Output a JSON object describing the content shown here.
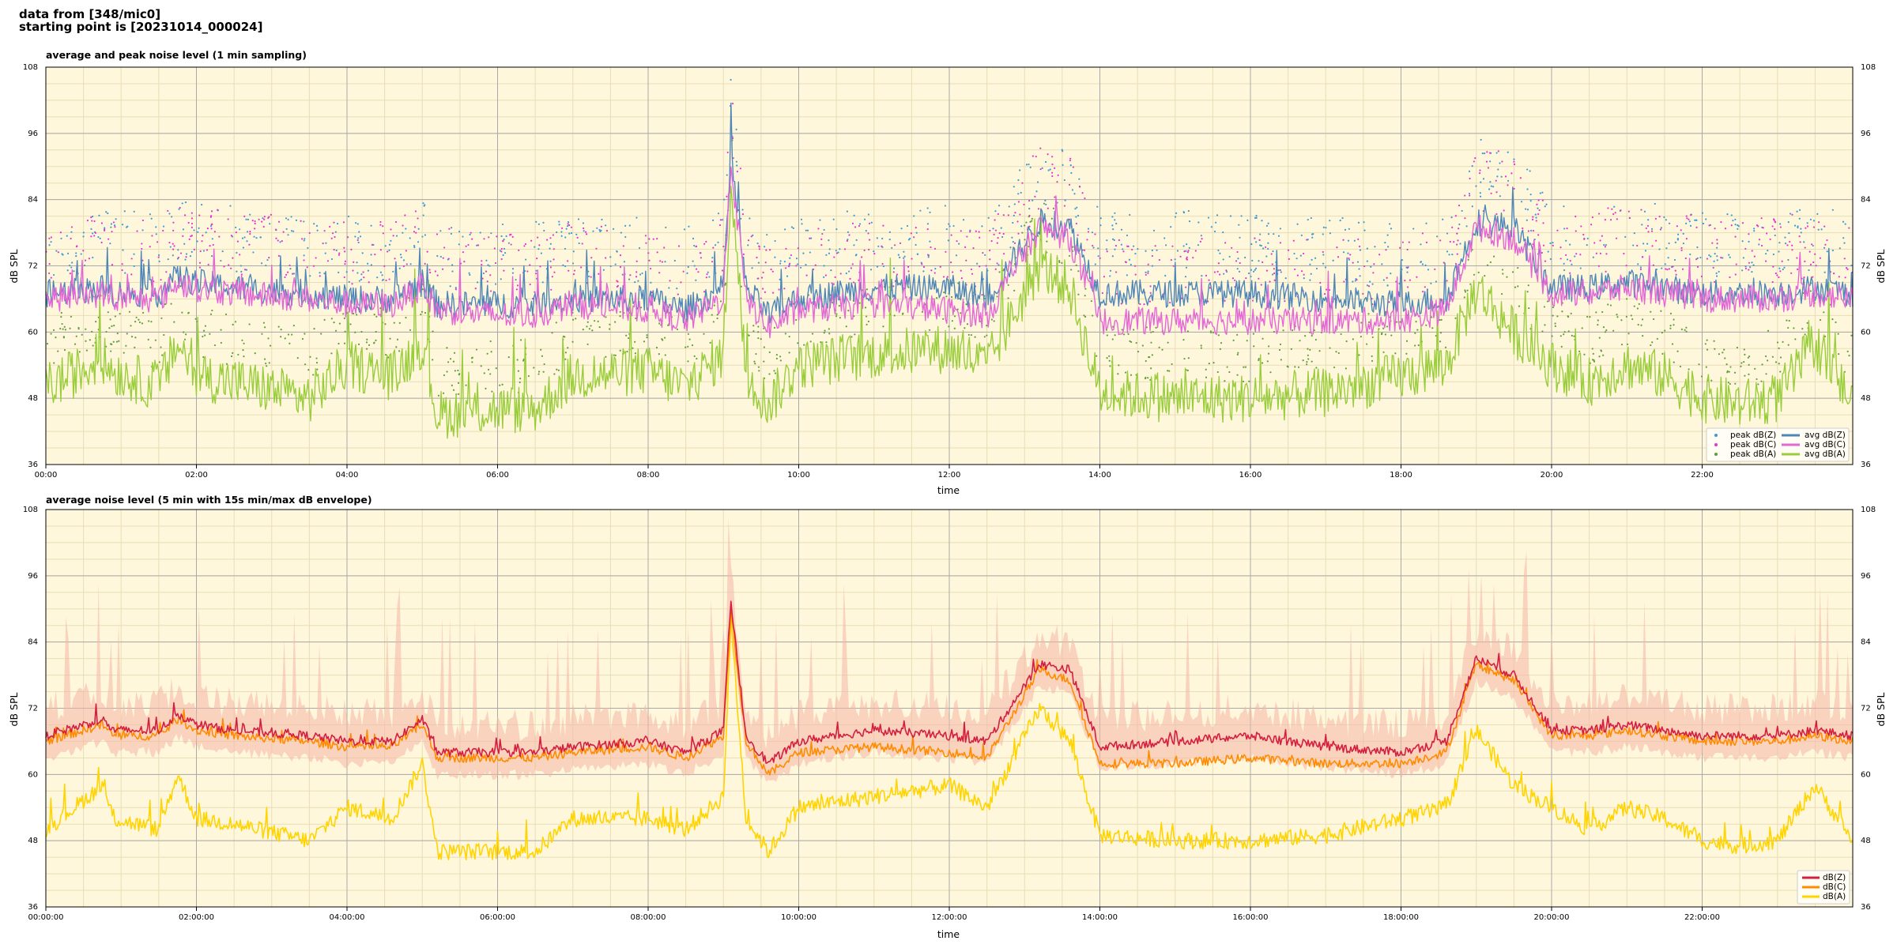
{
  "header": {
    "line1": "data from [348/mic0]",
    "line2": "starting point is [20231014_000024]"
  },
  "colors": {
    "plot_bg": "#fff7dc",
    "grid_major": "#a9a9a9",
    "grid_minor": "#e8ddb5",
    "avg_z": "#4f86b8",
    "avg_c": "#e467d6",
    "avg_a": "#9acd3c",
    "peak_z": "#3a9bd5",
    "peak_c": "#e633d0",
    "peak_a": "#5f9e3a",
    "dbz": "#d41f3f",
    "dbc": "#ff8c00",
    "dba": "#ffd400",
    "envelope": "#f4b7a4"
  },
  "chart_data": [
    {
      "type": "line",
      "title": "average and peak noise level (1 min sampling)",
      "xlabel": "time",
      "ylabel": "dB SPL",
      "ylim": [
        36,
        108
      ],
      "xlim_hours": [
        0,
        24
      ],
      "yticks": [
        "36",
        "48",
        "60",
        "72",
        "84",
        "96",
        "108"
      ],
      "xticks": [
        "00:00",
        "02:00",
        "04:00",
        "06:00",
        "08:00",
        "10:00",
        "12:00",
        "14:00",
        "16:00",
        "18:00",
        "20:00",
        "22:00"
      ],
      "grid": true,
      "legend_position": "bottom-right",
      "legend": [
        "peak dB(Z)",
        "peak dB(C)",
        "peak dB(A)",
        "avg dB(Z)",
        "avg dB(C)",
        "avg dB(A)"
      ],
      "series": [
        {
          "name": "avg dB(Z)",
          "x": [
            0,
            0.75,
            0.9,
            1.5,
            1.75,
            2,
            2.5,
            3.5,
            4,
            4.6,
            5,
            5.2,
            6,
            6.5,
            7,
            8,
            8.5,
            9,
            9.1,
            9.3,
            9.6,
            10,
            11,
            12,
            12.5,
            13.2,
            13.6,
            14,
            15,
            16,
            17,
            18,
            18.6,
            19,
            19.5,
            20,
            20.5,
            21,
            21.5,
            22,
            22.5,
            23,
            23.5,
            24
          ],
          "values": [
            67,
            68,
            67,
            67,
            70,
            69,
            68,
            67,
            66,
            66,
            69,
            65,
            65,
            65,
            66,
            66,
            64,
            68,
            92,
            68,
            63,
            66,
            68,
            68,
            66,
            80,
            79,
            67,
            67,
            67,
            66,
            65,
            66,
            80,
            79,
            68,
            68,
            69,
            68,
            67,
            67,
            67,
            68,
            67
          ]
        },
        {
          "name": "avg dB(C)",
          "x": [
            0,
            0.75,
            0.9,
            1.5,
            1.75,
            2,
            2.5,
            3.5,
            4,
            4.6,
            5,
            5.2,
            6,
            6.5,
            7,
            8,
            8.5,
            9,
            9.1,
            9.3,
            9.6,
            10,
            11,
            12,
            12.5,
            13.2,
            13.6,
            14,
            15,
            16,
            17,
            18,
            18.6,
            19,
            19.5,
            20,
            20.5,
            21,
            21.5,
            22,
            22.5,
            23,
            23.5,
            24
          ],
          "values": [
            66,
            67,
            66,
            66,
            69,
            68,
            67,
            66,
            65,
            65,
            68,
            64,
            63,
            63,
            65,
            64,
            62,
            66,
            91,
            66,
            61,
            64,
            65,
            64,
            63,
            79,
            77,
            62,
            62,
            62,
            62,
            62,
            64,
            79,
            77,
            67,
            67,
            68,
            67,
            66,
            66,
            66,
            67,
            66
          ]
        },
        {
          "name": "avg dB(A)",
          "x": [
            0,
            0.75,
            0.9,
            1.5,
            1.75,
            2,
            2.5,
            3.5,
            4,
            4.6,
            5,
            5.2,
            6,
            6.5,
            7,
            8,
            8.5,
            9,
            9.1,
            9.3,
            9.6,
            10,
            11,
            12,
            12.5,
            13.2,
            13.6,
            14,
            15,
            16,
            17,
            18,
            18.6,
            19,
            19.5,
            20,
            20.5,
            21,
            21.5,
            22,
            22.5,
            23,
            23.5,
            24
          ],
          "values": [
            50,
            55,
            53,
            50,
            58,
            52,
            51,
            48,
            54,
            52,
            58,
            45,
            46,
            46,
            52,
            53,
            50,
            56,
            88,
            52,
            47,
            54,
            56,
            57,
            54,
            72,
            68,
            49,
            48,
            48,
            49,
            52,
            54,
            68,
            60,
            54,
            51,
            54,
            52,
            48,
            47,
            48,
            58,
            47
          ]
        }
      ]
    },
    {
      "type": "line",
      "title": "average noise level (5 min with 15s min/max dB envelope)",
      "xlabel": "time",
      "ylabel": "dB SPL",
      "ylim": [
        36,
        108
      ],
      "xlim_hours": [
        0,
        24
      ],
      "yticks": [
        "36",
        "48",
        "60",
        "72",
        "84",
        "96",
        "108"
      ],
      "xticks": [
        "00:00:00",
        "02:00:00",
        "04:00:00",
        "06:00:00",
        "08:00:00",
        "10:00:00",
        "12:00:00",
        "14:00:00",
        "16:00:00",
        "18:00:00",
        "20:00:00",
        "22:00:00"
      ],
      "grid": true,
      "legend_position": "bottom-right",
      "legend": [
        "dB(Z)",
        "dB(C)",
        "dB(A)"
      ],
      "series": [
        {
          "name": "dB(Z)",
          "x": [
            0,
            0.75,
            0.9,
            1.5,
            1.75,
            2,
            2.5,
            3.5,
            4,
            4.6,
            5,
            5.2,
            6,
            6.5,
            7,
            8,
            8.5,
            9,
            9.1,
            9.3,
            9.6,
            10,
            11,
            12,
            12.5,
            13.2,
            13.6,
            14,
            15,
            16,
            17,
            18,
            18.6,
            19,
            19.5,
            20,
            20.5,
            21,
            21.5,
            22,
            22.5,
            23,
            23.5,
            24
          ],
          "values": [
            67,
            70,
            68,
            68,
            71,
            69,
            68,
            67,
            66,
            66,
            70,
            64,
            64,
            64,
            65,
            66,
            64,
            68,
            91,
            67,
            62,
            66,
            68,
            67,
            66,
            80,
            79,
            65,
            66,
            67,
            65,
            64,
            66,
            81,
            78,
            68,
            68,
            69,
            68,
            67,
            67,
            67,
            68,
            67
          ]
        },
        {
          "name": "dB(C)",
          "x": [
            0,
            0.75,
            0.9,
            1.5,
            1.75,
            2,
            2.5,
            3.5,
            4,
            4.6,
            5,
            5.2,
            6,
            6.5,
            7,
            8,
            8.5,
            9,
            9.1,
            9.3,
            9.6,
            10,
            11,
            12,
            12.5,
            13.2,
            13.6,
            14,
            15,
            16,
            17,
            18,
            18.6,
            19,
            19.5,
            20,
            20.5,
            21,
            21.5,
            22,
            22.5,
            23,
            23.5,
            24
          ],
          "values": [
            66,
            69,
            67,
            67,
            70,
            68,
            67,
            66,
            65,
            65,
            69,
            63,
            63,
            63,
            64,
            65,
            63,
            67,
            90,
            66,
            60,
            64,
            65,
            64,
            63,
            79,
            77,
            62,
            62,
            63,
            62,
            62,
            64,
            80,
            77,
            67,
            67,
            68,
            67,
            66,
            66,
            66,
            67,
            66
          ]
        },
        {
          "name": "dB(A)",
          "x": [
            0,
            0.75,
            0.9,
            1.5,
            1.75,
            2,
            2.5,
            3.5,
            4,
            4.6,
            5,
            5.2,
            6,
            6.5,
            7,
            8,
            8.5,
            9,
            9.1,
            9.3,
            9.6,
            10,
            11,
            12,
            12.5,
            13.2,
            13.6,
            14,
            15,
            16,
            17,
            18,
            18.6,
            19,
            19.5,
            20,
            20.5,
            21,
            21.5,
            22,
            22.5,
            23,
            23.5,
            24
          ],
          "values": [
            50,
            58,
            52,
            50,
            60,
            52,
            51,
            48,
            54,
            52,
            62,
            46,
            46,
            46,
            52,
            52,
            50,
            56,
            88,
            52,
            46,
            54,
            56,
            58,
            54,
            72,
            66,
            49,
            48,
            48,
            49,
            52,
            54,
            68,
            58,
            54,
            50,
            54,
            52,
            48,
            47,
            48,
            58,
            48
          ]
        }
      ]
    }
  ]
}
